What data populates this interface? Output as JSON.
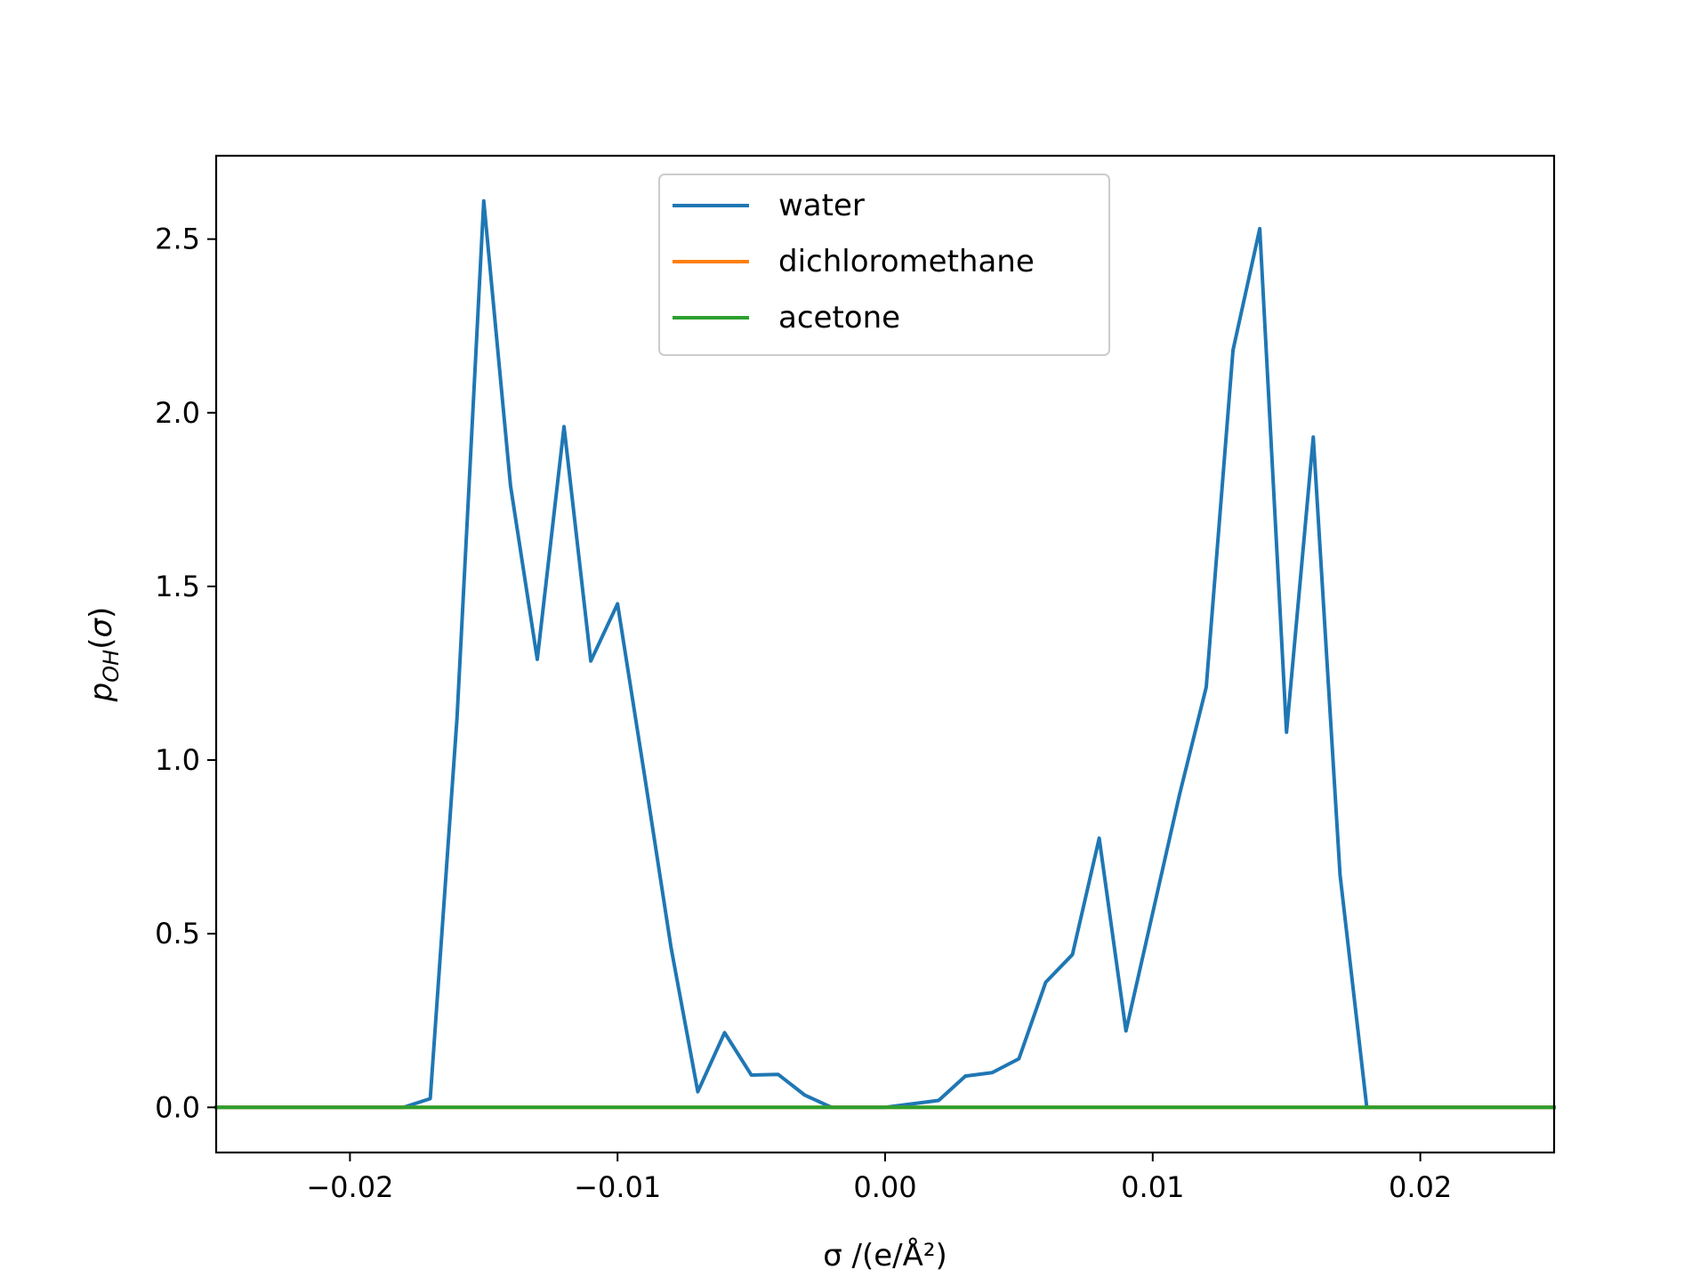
{
  "chart_data": {
    "type": "line",
    "title": "",
    "xlabel": "σ /(e/Å²)",
    "ylabel": "p_OH(σ)",
    "xlim": [
      -0.025,
      0.025
    ],
    "ylim": [
      -0.13,
      2.74
    ],
    "grid": false,
    "legend_placement": "upper center",
    "x_ticks": [
      -0.02,
      -0.01,
      0.0,
      0.01,
      0.02
    ],
    "x_tick_labels": [
      "−0.02",
      "−0.01",
      "0.00",
      "0.01",
      "0.02"
    ],
    "y_ticks": [
      0.0,
      0.5,
      1.0,
      1.5,
      2.0,
      2.5
    ],
    "y_tick_labels": [
      "0.0",
      "0.5",
      "1.0",
      "1.5",
      "2.0",
      "2.5"
    ],
    "x": [
      -0.025,
      -0.024,
      -0.023,
      -0.022,
      -0.021,
      -0.02,
      -0.019,
      -0.018,
      -0.017,
      -0.016,
      -0.015,
      -0.014,
      -0.013,
      -0.012,
      -0.011,
      -0.01,
      -0.009,
      -0.008,
      -0.007,
      -0.006,
      -0.005,
      -0.004,
      -0.003,
      -0.002,
      -0.001,
      0.0,
      0.001,
      0.002,
      0.003,
      0.004,
      0.005,
      0.006,
      0.007,
      0.008,
      0.009,
      0.01,
      0.011,
      0.012,
      0.013,
      0.014,
      0.015,
      0.016,
      0.017,
      0.018,
      0.019,
      0.02,
      0.021,
      0.022,
      0.023,
      0.024,
      0.025
    ],
    "series": [
      {
        "name": "water",
        "color": "#1f77b4",
        "values": [
          0,
          0,
          0,
          0,
          0,
          0,
          0,
          0,
          0.025,
          1.12,
          2.61,
          1.79,
          1.29,
          1.96,
          1.285,
          1.45,
          0.96,
          0.46,
          0.045,
          0.215,
          0.093,
          0.095,
          0.035,
          0,
          0,
          0,
          0.01,
          0.02,
          0.09,
          0.1,
          0.14,
          0.36,
          0.44,
          0.775,
          0.22,
          0.56,
          0.9,
          1.21,
          2.18,
          2.53,
          1.08,
          1.93,
          0.67,
          0,
          0,
          0,
          0,
          0,
          0,
          0,
          0
        ]
      },
      {
        "name": "dichloromethane",
        "color": "#ff7f0e",
        "values": [
          0,
          0,
          0,
          0,
          0,
          0,
          0,
          0,
          0,
          0,
          0,
          0,
          0,
          0,
          0,
          0,
          0,
          0,
          0,
          0,
          0,
          0,
          0,
          0,
          0,
          0,
          0,
          0,
          0,
          0,
          0,
          0,
          0,
          0,
          0,
          0,
          0,
          0,
          0,
          0,
          0,
          0,
          0,
          0,
          0,
          0,
          0,
          0,
          0,
          0,
          0
        ]
      },
      {
        "name": "acetone",
        "color": "#2ca02c",
        "values": [
          0,
          0,
          0,
          0,
          0,
          0,
          0,
          0,
          0,
          0,
          0,
          0,
          0,
          0,
          0,
          0,
          0,
          0,
          0,
          0,
          0,
          0,
          0,
          0,
          0,
          0,
          0,
          0,
          0,
          0,
          0,
          0,
          0,
          0,
          0,
          0,
          0,
          0,
          0,
          0,
          0,
          0,
          0,
          0,
          0,
          0,
          0,
          0,
          0,
          0,
          0
        ]
      }
    ]
  }
}
